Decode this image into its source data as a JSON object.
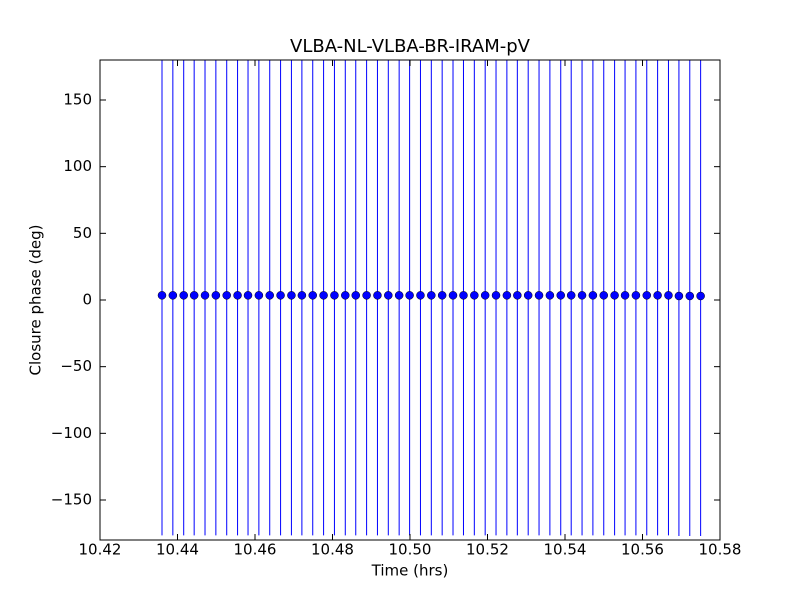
{
  "chart_data": {
    "type": "scatter",
    "title": "VLBA-NL-VLBA-BR-IRAM-pV",
    "xlabel": "Time (hrs)",
    "ylabel": "Closure phase (deg)",
    "x": [
      10.436,
      10.4388,
      10.4416,
      10.4443,
      10.4471,
      10.4499,
      10.4527,
      10.4555,
      10.4582,
      10.461,
      10.4638,
      10.4666,
      10.4694,
      10.4721,
      10.4749,
      10.4777,
      10.4805,
      10.4833,
      10.486,
      10.4888,
      10.4916,
      10.4944,
      10.4972,
      10.4999,
      10.5027,
      10.5055,
      10.5083,
      10.5111,
      10.5138,
      10.5166,
      10.5194,
      10.5222,
      10.525,
      10.5277,
      10.5305,
      10.5333,
      10.5361,
      10.5389,
      10.5416,
      10.5444,
      10.5472,
      10.55,
      10.5528,
      10.5555,
      10.5583,
      10.5611,
      10.5639,
      10.5667,
      10.5694,
      10.5722,
      10.575
    ],
    "values": [
      3.5,
      3.5,
      3.5,
      3.5,
      3.5,
      3.5,
      3.5,
      3.5,
      3.5,
      3.5,
      3.5,
      3.5,
      3.5,
      3.5,
      3.5,
      3.5,
      3.5,
      3.5,
      3.5,
      3.5,
      3.5,
      3.5,
      3.5,
      3.5,
      3.5,
      3.5,
      3.5,
      3.5,
      3.5,
      3.5,
      3.5,
      3.5,
      3.5,
      3.5,
      3.5,
      3.5,
      3.5,
      3.5,
      3.5,
      3.5,
      3.5,
      3.5,
      3.5,
      3.5,
      3.5,
      3.5,
      3.5,
      3.5,
      3,
      3,
      3
    ],
    "errors": [
      180,
      180,
      180,
      180,
      180,
      180,
      180,
      180,
      180,
      180,
      180,
      180,
      180,
      180,
      180,
      180,
      180,
      180,
      180,
      180,
      180,
      180,
      180,
      180,
      180,
      180,
      180,
      180,
      180,
      180,
      180,
      180,
      180,
      180,
      180,
      180,
      180,
      180,
      180,
      180,
      180,
      180,
      180,
      180,
      180,
      180,
      180,
      180,
      180,
      180,
      180
    ],
    "color": "#0000ff",
    "xlim": [
      10.42,
      10.58
    ],
    "xticks": [
      10.42,
      10.44,
      10.46,
      10.48,
      {
        "value": 10.5,
        "label": "10.50"
      },
      10.52,
      10.54,
      10.56,
      10.58
    ],
    "ylim": [
      -180,
      180
    ],
    "yticks": [
      {
        "value": -150,
        "label": "−150"
      },
      {
        "value": -100,
        "label": "−100"
      },
      {
        "value": -50,
        "label": "−50"
      },
      0,
      50,
      100,
      150
    ],
    "grid": false
  }
}
